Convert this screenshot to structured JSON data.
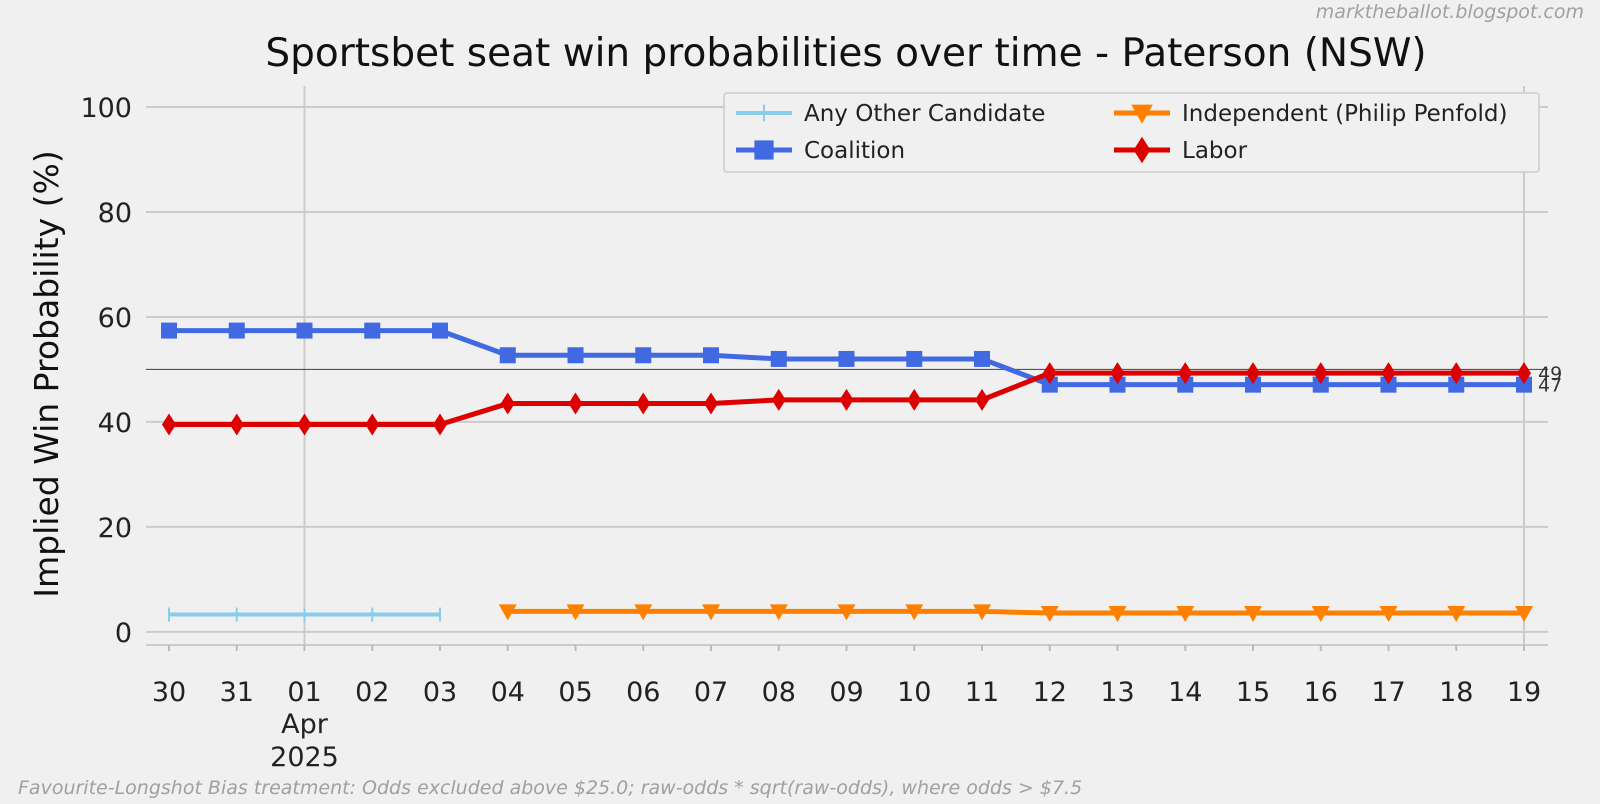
{
  "chart_data": {
    "type": "line",
    "title": "Sportsbet seat win probabilities over time - Paterson (NSW)",
    "ylabel": "Implied Win Probability (%)",
    "xlabel": "",
    "watermark": "marktheballot.blogspot.com",
    "footnote": "Favourite-Longshot Bias treatment: Odds excluded above $25.0; raw-odds * sqrt(raw-odds), where odds > $7.5",
    "ylim": [
      -2.5,
      104
    ],
    "yticks": [
      0,
      20,
      40,
      60,
      80,
      100
    ],
    "ytick_labels": [
      "0",
      "20",
      "40",
      "60",
      "80",
      "100"
    ],
    "x_dates": [
      "2025-03-30",
      "2025-03-31",
      "2025-04-01",
      "2025-04-02",
      "2025-04-03",
      "2025-04-04",
      "2025-04-05",
      "2025-04-06",
      "2025-04-07",
      "2025-04-08",
      "2025-04-09",
      "2025-04-10",
      "2025-04-11",
      "2025-04-12",
      "2025-04-13",
      "2025-04-14",
      "2025-04-15",
      "2025-04-16",
      "2025-04-17",
      "2025-04-18",
      "2025-04-19"
    ],
    "xtick_labels": [
      "30",
      "31",
      "01",
      "02",
      "03",
      "04",
      "05",
      "06",
      "07",
      "08",
      "09",
      "10",
      "11",
      "12",
      "13",
      "14",
      "15",
      "16",
      "17",
      "18",
      "19"
    ],
    "month_label": "Apr",
    "year_label": "2025",
    "reference_line": 50,
    "grid": true,
    "legend_position": "top-right",
    "series": [
      {
        "name": "Any Other Candidate",
        "color": "#87ceeb",
        "marker": "plus",
        "values": [
          3.3,
          3.3,
          3.3,
          3.3,
          3.3,
          null,
          null,
          null,
          null,
          null,
          null,
          null,
          null,
          null,
          null,
          null,
          null,
          null,
          null,
          null,
          null
        ]
      },
      {
        "name": "Coalition",
        "color": "#4169e1",
        "marker": "square",
        "values": [
          57.4,
          57.4,
          57.4,
          57.4,
          57.4,
          52.7,
          52.7,
          52.7,
          52.7,
          52.0,
          52.0,
          52.0,
          52.0,
          47.1,
          47.1,
          47.1,
          47.1,
          47.1,
          47.1,
          47.1,
          47.1
        ],
        "end_label": "47"
      },
      {
        "name": "Independent (Philip Penfold)",
        "color": "#ff8000",
        "marker": "triangle-down",
        "values": [
          null,
          null,
          null,
          null,
          null,
          3.9,
          3.9,
          3.9,
          3.9,
          3.9,
          3.9,
          3.9,
          3.9,
          3.6,
          3.6,
          3.6,
          3.6,
          3.6,
          3.6,
          3.6,
          3.6
        ]
      },
      {
        "name": "Labor",
        "color": "#dd0000",
        "marker": "diamond",
        "values": [
          39.5,
          39.5,
          39.5,
          39.5,
          39.5,
          43.5,
          43.5,
          43.5,
          43.5,
          44.2,
          44.2,
          44.2,
          44.2,
          49.3,
          49.3,
          49.3,
          49.3,
          49.3,
          49.3,
          49.3,
          49.3
        ],
        "end_label": "49"
      }
    ]
  }
}
